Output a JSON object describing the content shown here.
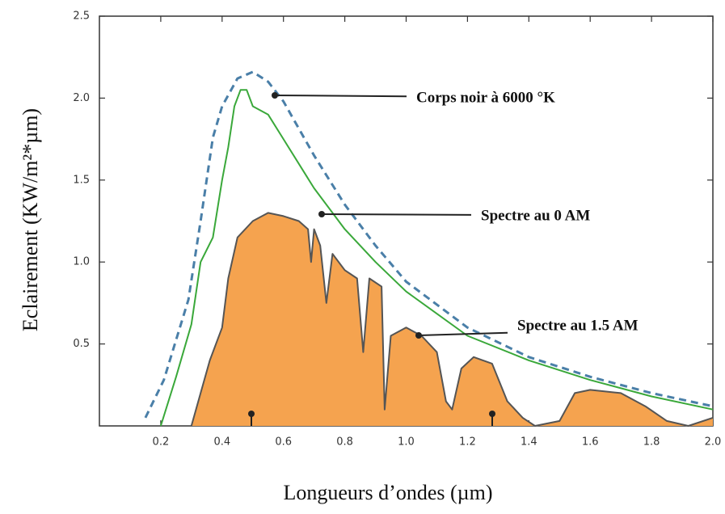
{
  "chart_data": {
    "type": "line",
    "xlabel": "Longueurs d’ondes (µm)",
    "ylabel": "Eclairement (KW/m²*µm)",
    "xlim": [
      0,
      2.0
    ],
    "ylim": [
      0,
      2.5
    ],
    "xticks": [
      0.2,
      0.4,
      0.6,
      0.8,
      {
        "value": 1.0,
        "label": "1.0"
      },
      1.2,
      1.4,
      1.6,
      1.8,
      {
        "value": 2.0,
        "label": "2.0"
      }
    ],
    "yticks": [
      0.5,
      {
        "value": 1.0,
        "label": "1.0"
      },
      1.5,
      {
        "value": 2.0,
        "label": "2.0"
      },
      2.5
    ],
    "series": [
      {
        "name": "Corps noir à 6000 °K",
        "color": "#4a7fa8",
        "style": "dashed",
        "x": [
          0.15,
          0.21,
          0.29,
          0.33,
          0.37,
          0.4,
          0.45,
          0.5,
          0.55,
          0.6,
          0.7,
          0.8,
          0.9,
          1.0,
          1.2,
          1.4,
          1.6,
          1.8,
          2.0
        ],
        "values": [
          0.05,
          0.28,
          0.77,
          1.25,
          1.76,
          1.95,
          2.12,
          2.16,
          2.1,
          1.98,
          1.65,
          1.35,
          1.1,
          0.88,
          0.6,
          0.42,
          0.3,
          0.2,
          0.12
        ]
      },
      {
        "name": "Spectre au 0 AM",
        "color": "#3aa83a",
        "style": "solid",
        "x": [
          0.2,
          0.25,
          0.3,
          0.33,
          0.37,
          0.4,
          0.42,
          0.44,
          0.46,
          0.48,
          0.5,
          0.55,
          0.6,
          0.7,
          0.8,
          0.9,
          1.0,
          1.2,
          1.4,
          1.6,
          1.8,
          2.0
        ],
        "values": [
          0,
          0.3,
          0.62,
          1.0,
          1.15,
          1.5,
          1.7,
          1.95,
          2.05,
          2.05,
          1.95,
          1.9,
          1.75,
          1.45,
          1.2,
          1.0,
          0.82,
          0.55,
          0.4,
          0.28,
          0.18,
          0.1
        ]
      },
      {
        "name": "Spectre au 1.5 AM",
        "color": "#555555",
        "fill": "#f5a34f",
        "style": "area",
        "x": [
          0.3,
          0.33,
          0.36,
          0.4,
          0.42,
          0.45,
          0.5,
          0.55,
          0.6,
          0.65,
          0.68,
          0.69,
          0.7,
          0.72,
          0.74,
          0.76,
          0.8,
          0.84,
          0.86,
          0.88,
          0.92,
          0.93,
          0.95,
          1.0,
          1.05,
          1.1,
          1.13,
          1.15,
          1.18,
          1.22,
          1.28,
          1.33,
          1.38,
          1.42,
          1.5,
          1.55,
          1.6,
          1.7,
          1.78,
          1.85,
          1.92,
          2.0
        ],
        "values": [
          0,
          0.2,
          0.4,
          0.6,
          0.9,
          1.15,
          1.25,
          1.3,
          1.28,
          1.25,
          1.2,
          1.0,
          1.2,
          1.1,
          0.75,
          1.05,
          0.95,
          0.9,
          0.45,
          0.9,
          0.85,
          0.1,
          0.55,
          0.6,
          0.55,
          0.45,
          0.15,
          0.1,
          0.35,
          0.42,
          0.38,
          0.15,
          0.05,
          0.0,
          0.03,
          0.2,
          0.22,
          0.2,
          0.12,
          0.03,
          0.0,
          0.05
        ]
      }
    ]
  }
}
